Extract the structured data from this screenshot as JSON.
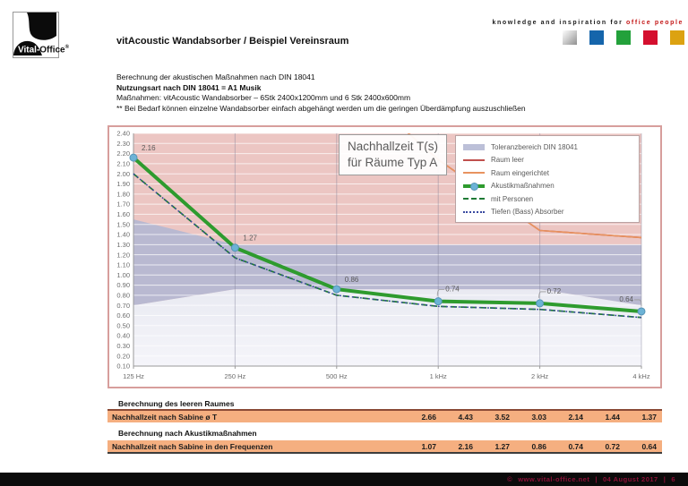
{
  "header": {
    "logo": {
      "part1": "Vital-",
      "part2": "Office",
      "reg": "®"
    },
    "title": "vitAcoustic Wandabsorber / Beispiel Vereinsraum",
    "tagline_black": "knowledge and inspiration for",
    "tagline_red": "office people",
    "brand_squares": [
      {
        "name": "silver",
        "color": "#b9b9b9"
      },
      {
        "name": "blue",
        "color": "#1565ab"
      },
      {
        "name": "green",
        "color": "#23a13b"
      },
      {
        "name": "red",
        "color": "#d40f2e"
      },
      {
        "name": "gold",
        "color": "#dca211"
      }
    ]
  },
  "intro": {
    "line1": "Berechnung der akustischen Maßnahmen nach DIN 18041",
    "line2": "Nutzungsart nach DIN 18041 = A1 Musik",
    "line3": "Maßnahmen: vitAcoustic Wandabsorber – 6Stk 2400x1200mm und 6 Stk 2400x600mm",
    "line4": "** Bei Bedarf können  einzelne Wandabsorber einfach abgehängt werden um die geringen Überdämpfung auszuschließen"
  },
  "chart_data": {
    "type": "line",
    "title": "Nachhallzeit T(s) für Räume Typ A",
    "title_lines": [
      "Nachhallzeit T(s)",
      "für Räume Typ A"
    ],
    "categories": [
      "125 Hz",
      "250 Hz",
      "500 Hz",
      "1 kHz",
      "2 kHz",
      "4 kHz"
    ],
    "ylim": [
      0.1,
      2.4
    ],
    "ytick_step": 0.1,
    "grid": true,
    "legend_position": "top-right",
    "plot_colors": {
      "above_band": "#ecc6c3",
      "band": "#b4b7d2",
      "below_band_top": "#e9eaf2",
      "below_band_bottom": "#f5f5fa"
    },
    "tolerance_band": {
      "name": "Toleranzbereich DIN 18041",
      "upper": [
        1.55,
        1.3,
        1.3,
        1.3,
        1.3,
        1.3
      ],
      "lower": [
        0.7,
        0.86,
        0.86,
        0.86,
        0.86,
        0.7
      ]
    },
    "series": [
      {
        "name": "Raum leer",
        "color": "#c0504d",
        "style": "solid",
        "values": [
          4.43,
          3.52,
          3.03,
          2.14,
          1.44,
          1.37
        ]
      },
      {
        "name": "Raum eingerichtet",
        "color": "#e8935f",
        "style": "solid",
        "values": [
          4.43,
          3.52,
          3.03,
          2.14,
          1.44,
          1.37
        ]
      },
      {
        "name": "mit Personen",
        "color": "#1e7a35",
        "style": "dashed",
        "values": [
          2.0,
          1.17,
          0.8,
          0.69,
          0.66,
          0.58
        ]
      },
      {
        "name": "Tiefen (Bass) Absorber",
        "color": "#3a4aa0",
        "style": "dotted",
        "values": [
          2.0,
          1.17,
          0.8,
          0.69,
          0.66,
          0.58
        ]
      },
      {
        "name": "Akustikmaßnahmen",
        "color": "#2e9b2e",
        "style": "thick",
        "marker_color": "#6cb3d6",
        "values": [
          2.16,
          1.27,
          0.86,
          0.74,
          0.72,
          0.64
        ],
        "value_labels": [
          "2.16",
          "1.27",
          "0.86",
          "0.74",
          "0.72",
          "0.64"
        ]
      }
    ],
    "legend": [
      {
        "label": "Toleranzbereich DIN 18041",
        "type": "band",
        "color": "#bcc0d8"
      },
      {
        "label": "Raum leer",
        "type": "line",
        "color": "#c0504d"
      },
      {
        "label": "Raum eingerichtet",
        "type": "line",
        "color": "#e8935f"
      },
      {
        "label": "Akustikmaßnahmen",
        "type": "thick",
        "color": "#2e9b2e",
        "marker": "#6cb3d6"
      },
      {
        "label": "mit Personen",
        "type": "dashed",
        "color": "#1e7a35"
      },
      {
        "label": "Tiefen (Bass) Absorber",
        "type": "dotted",
        "color": "#3a4aa0"
      }
    ]
  },
  "tables": {
    "section1_label": "Berechnung des leeren Raumes",
    "row1_label": "Nachhallzeit nach Sabine ø T",
    "row1_values": [
      "2.66",
      "4.43",
      "3.52",
      "3.03",
      "2.14",
      "1.44",
      "1.37"
    ],
    "section2_label": "Berechnung nach Akustikmaßnahmen",
    "row2_label": "Nachhallzeit nach Sabine in den Frequenzen",
    "row2_values": [
      "1.07",
      "2.16",
      "1.27",
      "0.86",
      "0.74",
      "0.72",
      "0.64"
    ],
    "row_bg": "#f5af80"
  },
  "footer": {
    "copyright": "©",
    "url": "www.vital-office.net",
    "sep": "|",
    "date": "04 August 2017",
    "page": "6"
  }
}
